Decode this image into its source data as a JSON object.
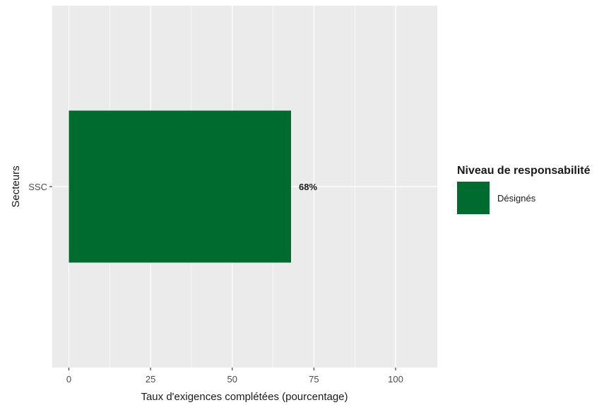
{
  "chart_data": {
    "type": "bar",
    "orientation": "horizontal",
    "categories": [
      "SSC"
    ],
    "values": [
      68
    ],
    "data_labels": [
      "68%"
    ],
    "xlabel": "Taux d'exigences complétées (pourcentage)",
    "ylabel": "Secteurs",
    "xlim": [
      0,
      112
    ],
    "x_ticks": [
      0,
      25,
      50,
      75,
      100
    ],
    "grid": true,
    "legend": {
      "title": "Niveau de responsabilité",
      "placement": "right",
      "entries": [
        {
          "label": "Désignés",
          "color": "#006b2e"
        }
      ]
    },
    "colors": {
      "bar": "#006b2e",
      "panel": "#ebebeb",
      "grid": "#ffffff"
    }
  }
}
